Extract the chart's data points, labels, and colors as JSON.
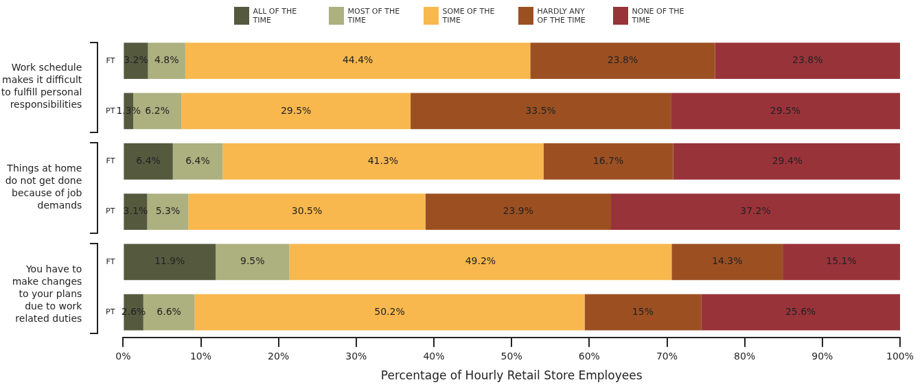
{
  "chart_data": {
    "type": "bar",
    "orientation": "horizontal",
    "stacked": true,
    "xlabel": "Percentage of Hourly Retail Store Employees",
    "categories": [
      "FT",
      "PT",
      "FT",
      "PT",
      "FT",
      "PT"
    ],
    "annotations": [
      "Work schedule makes it difficult to fulfill personal responsibilities",
      "Things at home do not get done because of job demands",
      "You have to make changes to your plans due to work related duties"
    ],
    "series": [
      {
        "name": "ALL OF THE TIME",
        "color": "#555a3f",
        "values": [
          3.2,
          1.3,
          6.4,
          3.1,
          11.9,
          2.6
        ],
        "value_labels": [
          "3.2%",
          "1.3%",
          "6.4%",
          "3.1%",
          "11.9%",
          "2.6%"
        ]
      },
      {
        "name": "MOST OF THE TIME",
        "color": "#adb07f",
        "values": [
          4.8,
          6.2,
          6.4,
          5.3,
          9.5,
          6.6
        ],
        "value_labels": [
          "4.8%",
          "6.2%",
          "6.4%",
          "5.3%",
          "9.5%",
          "6.6%"
        ]
      },
      {
        "name": "SOME OF THE TIME",
        "color": "#f8b84e",
        "values": [
          44.4,
          29.5,
          41.3,
          30.5,
          49.2,
          50.2
        ],
        "value_labels": [
          "44.4%",
          "29.5%",
          "41.3%",
          "30.5%",
          "49.2%",
          "50.2%"
        ]
      },
      {
        "name": "HARDLY ANY OF THE TIME",
        "color": "#9c5022",
        "values": [
          23.8,
          33.5,
          16.7,
          23.9,
          14.3,
          15
        ],
        "value_labels": [
          "23.8%",
          "33.5%",
          "16.7%",
          "23.9%",
          "14.3%",
          "15%"
        ]
      },
      {
        "name": "NONE OF THE TIME",
        "color": "#99333a",
        "values": [
          23.8,
          29.5,
          29.4,
          37.2,
          15.1,
          25.6
        ],
        "value_labels": [
          "23.8%",
          "29.5%",
          "29.4%",
          "37.2%",
          "15.1%",
          "25.6%"
        ]
      }
    ],
    "xlim": [
      0,
      100
    ],
    "xticks": [
      {
        "value": 0,
        "label": "0%"
      },
      {
        "value": 10,
        "label": "10%"
      },
      {
        "value": 20,
        "label": "20%"
      },
      {
        "value": 30,
        "label": "30%"
      },
      {
        "value": 40,
        "label": "40%"
      },
      {
        "value": 50,
        "label": "50%"
      },
      {
        "value": 60,
        "label": "60%"
      },
      {
        "value": 70,
        "label": "70%"
      },
      {
        "value": 80,
        "label": "80%"
      },
      {
        "value": 90,
        "label": "90%"
      },
      {
        "value": 100,
        "label": "100%"
      }
    ],
    "grid": false,
    "legend": "top"
  }
}
